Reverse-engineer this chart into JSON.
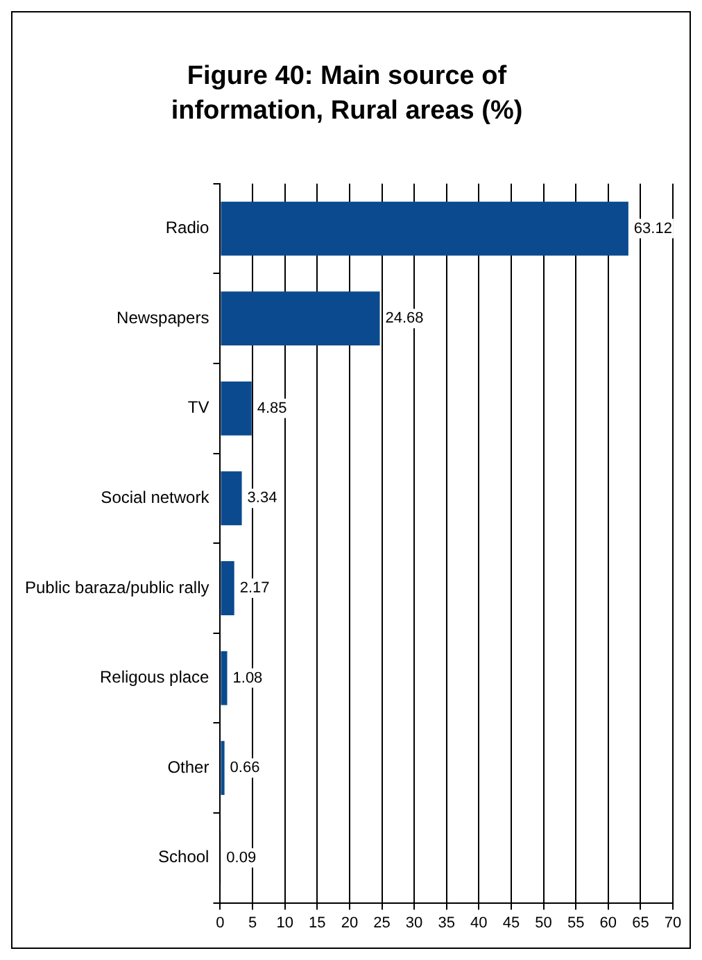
{
  "chart_data": {
    "type": "bar",
    "orientation": "horizontal",
    "title": "Figure 40: Main source of information, Rural areas (%)",
    "categories": [
      "Radio",
      "Newspapers",
      "TV",
      "Social network",
      "Public baraza/public rally",
      "Religous place",
      "Other",
      "School"
    ],
    "values": [
      63.12,
      24.68,
      4.85,
      3.34,
      2.17,
      1.08,
      0.66,
      0.09
    ],
    "color": "#0b4a8f",
    "xlim": [
      0,
      70
    ],
    "xticks": [
      0,
      5,
      10,
      15,
      20,
      25,
      30,
      35,
      40,
      45,
      50,
      55,
      60,
      65,
      70
    ],
    "grid": "x",
    "legend": false,
    "data_labels": true
  }
}
